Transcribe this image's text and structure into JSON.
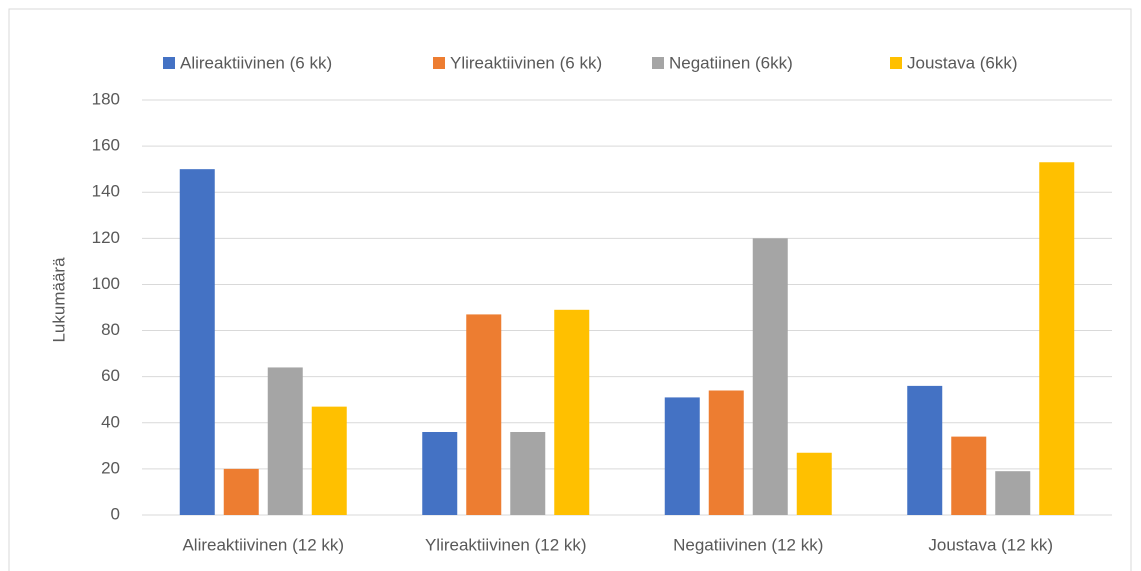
{
  "chart_data": {
    "type": "bar",
    "categories": [
      "Alireaktiivinen (12 kk)",
      "Ylireaktiivinen (12 kk)",
      "Negatiivinen (12 kk)",
      "Joustava (12 kk)"
    ],
    "series": [
      {
        "name": "Alireaktiivinen (6 kk)",
        "color": "#4472c4",
        "values": [
          150,
          36,
          51,
          56
        ]
      },
      {
        "name": "Ylireaktiivinen (6 kk)",
        "color": "#ed7d31",
        "values": [
          20,
          87,
          54,
          34
        ]
      },
      {
        "name": "Negatiinen (6kk)",
        "color": "#a5a5a5",
        "values": [
          64,
          36,
          120,
          19
        ]
      },
      {
        "name": "Joustava (6kk)",
        "color": "#ffc000",
        "values": [
          47,
          89,
          27,
          153
        ]
      }
    ],
    "y_label": "Lukumäärä",
    "ylim": [
      0,
      180
    ],
    "yticks": [
      0,
      20,
      40,
      60,
      80,
      100,
      120,
      140,
      160,
      180
    ],
    "grid": true,
    "legend": "top"
  }
}
